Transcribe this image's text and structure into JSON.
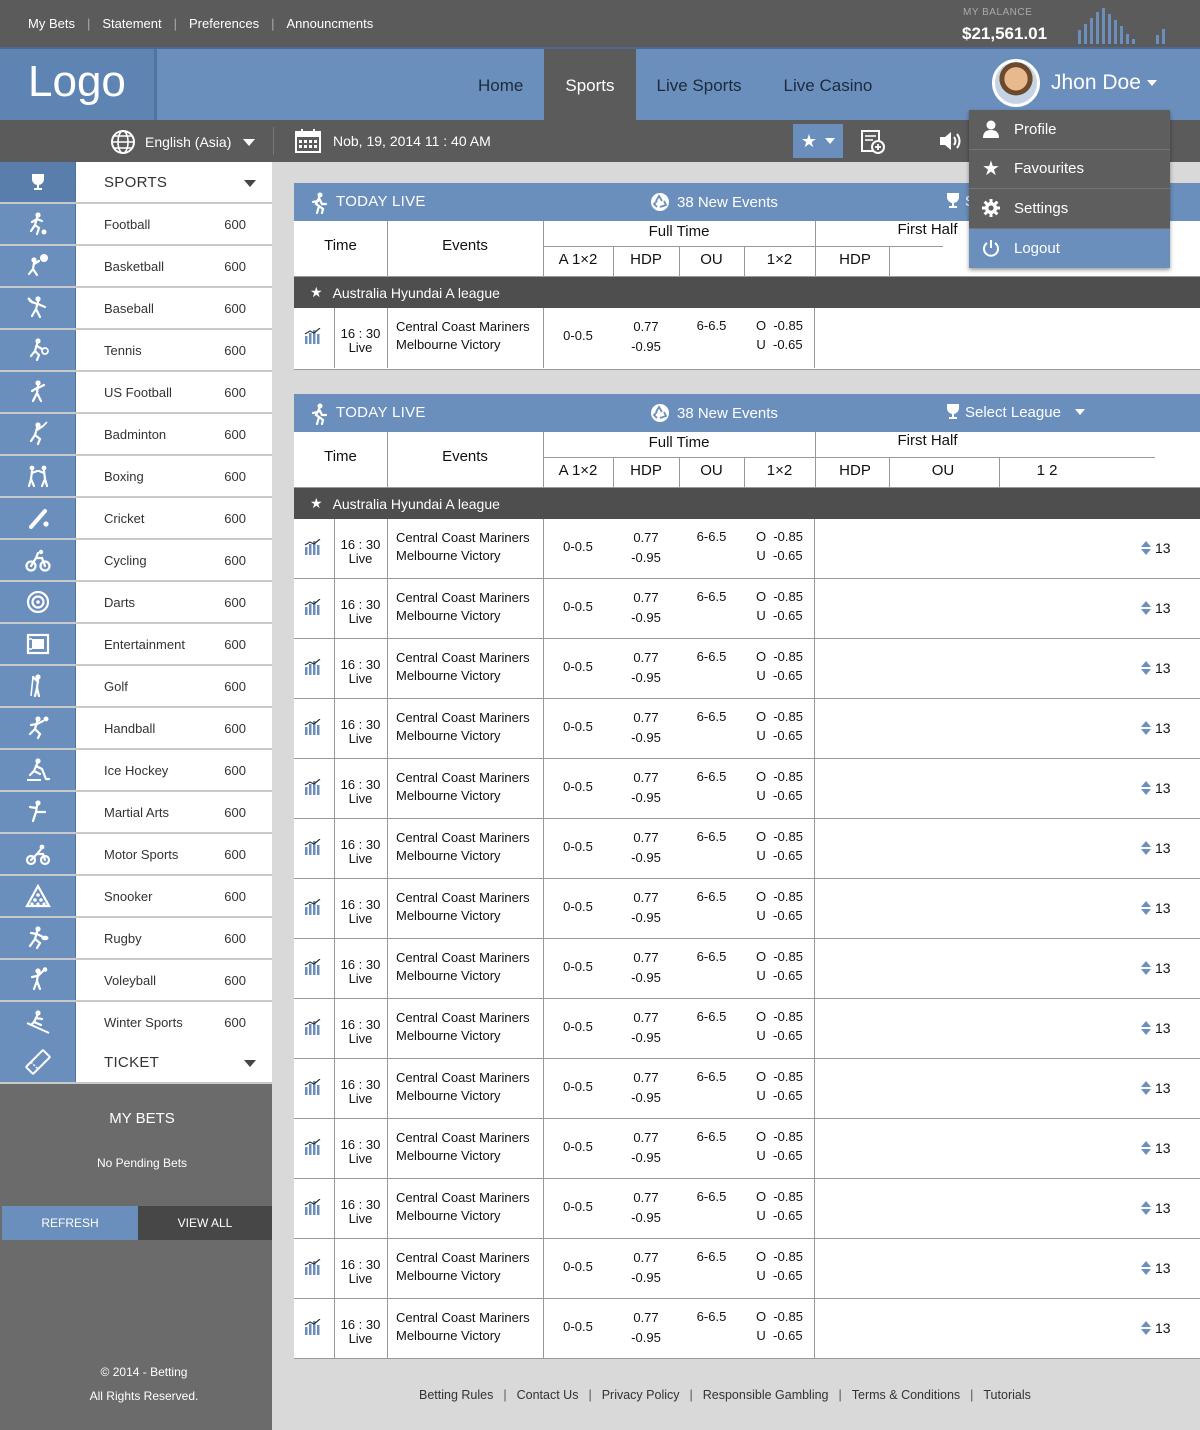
{
  "topbar": {
    "links": [
      "My Bets",
      "Statement",
      "Preferences",
      "Announcments"
    ],
    "balance_label": "MY BALANCE",
    "balance_value": "$21,561.01"
  },
  "header": {
    "logo": "Logo",
    "nav": [
      {
        "label": "Home",
        "active": false
      },
      {
        "label": "Sports",
        "active": true
      },
      {
        "label": "Live Sports",
        "active": false
      },
      {
        "label": "Live Casino",
        "active": false
      }
    ],
    "user_name": "Jhon Doe"
  },
  "toolbar": {
    "language": "English (Asia)",
    "datetime": "Nob, 19, 2014 11 : 40 AM"
  },
  "user_menu": {
    "items": [
      {
        "label": "Profile",
        "icon": "user-icon"
      },
      {
        "label": "Favourites",
        "icon": "star-icon"
      },
      {
        "label": "Settings",
        "icon": "gear-icon"
      },
      {
        "label": "Logout",
        "icon": "power-icon"
      }
    ]
  },
  "sidebar": {
    "sports_title": "SPORTS",
    "sports": [
      {
        "label": "Football",
        "count": "600"
      },
      {
        "label": "Basketball",
        "count": "600"
      },
      {
        "label": "Baseball",
        "count": "600"
      },
      {
        "label": "Tennis",
        "count": "600"
      },
      {
        "label": "US Football",
        "count": "600"
      },
      {
        "label": "Badminton",
        "count": "600"
      },
      {
        "label": "Boxing",
        "count": "600"
      },
      {
        "label": "Cricket",
        "count": "600"
      },
      {
        "label": "Cycling",
        "count": "600"
      },
      {
        "label": "Darts",
        "count": "600"
      },
      {
        "label": "Entertainment",
        "count": "600"
      },
      {
        "label": "Golf",
        "count": "600"
      },
      {
        "label": "Handball",
        "count": "600"
      },
      {
        "label": "Ice Hockey",
        "count": "600"
      },
      {
        "label": "Martial Arts",
        "count": "600"
      },
      {
        "label": "Motor Sports",
        "count": "600"
      },
      {
        "label": "Snooker",
        "count": "600"
      },
      {
        "label": "Rugby",
        "count": "600"
      },
      {
        "label": "Voleyball",
        "count": "600"
      },
      {
        "label": "Winter Sports",
        "count": "600"
      }
    ],
    "ticket_title": "TICKET",
    "mybets_title": "MY BETS",
    "no_pending": "No Pending Bets",
    "refresh": "REFRESH",
    "view_all": "VIEW ALL",
    "copyright": "© 2014 - Betting",
    "rights": "All Rights Reserved."
  },
  "panel1": {
    "title": "TODAY LIVE",
    "new_events": "38 New Events",
    "select_league_partial": "S",
    "cols": {
      "time": "Time",
      "events": "Events",
      "full_time": "Full Time",
      "first_half": "First Half",
      "a12": "A 1×2",
      "hdp": "HDP",
      "ou": "OU",
      "x12": "1×2",
      "hdp2": "HDP"
    },
    "league": "Australia Hyundai A league",
    "match": {
      "time": "16 : 30",
      "status": "Live",
      "home": "Central Coast Mariners",
      "away": "Melbourne Victory",
      "a12": "0-0.5",
      "hdp_top": "0.77",
      "hdp_bot": "-0.95",
      "ou": "6-6.5",
      "x12_top": "O  -0.85",
      "x12_bot": "U  -0.65"
    }
  },
  "panel2": {
    "title": "TODAY LIVE",
    "new_events": "38 New Events",
    "select_league": "Select League",
    "cols": {
      "time": "Time",
      "events": "Events",
      "full_time": "Full Time",
      "first_half": "First Half",
      "a12": "A 1×2",
      "hdp": "HDP",
      "ou": "OU",
      "x12": "1×2",
      "hdp2": "HDP",
      "ou2": "OU",
      "x12_2": "1  2"
    },
    "league": "Australia Hyundai A league",
    "matches": [
      {
        "time": "16 : 30",
        "status": "Live",
        "home": "Central Coast Mariners",
        "away": "Melbourne Victory",
        "a12": "0-0.5",
        "hdp_top": "0.77",
        "hdp_bot": "-0.95",
        "ou": "6-6.5",
        "x12_top": "O  -0.85",
        "x12_bot": "U  -0.65",
        "more": "13"
      },
      {
        "time": "16 : 30",
        "status": "Live",
        "home": "Central Coast Mariners",
        "away": "Melbourne Victory",
        "a12": "0-0.5",
        "hdp_top": "0.77",
        "hdp_bot": "-0.95",
        "ou": "6-6.5",
        "x12_top": "O  -0.85",
        "x12_bot": "U  -0.65",
        "more": "13"
      },
      {
        "time": "16 : 30",
        "status": "Live",
        "home": "Central Coast Mariners",
        "away": "Melbourne Victory",
        "a12": "0-0.5",
        "hdp_top": "0.77",
        "hdp_bot": "-0.95",
        "ou": "6-6.5",
        "x12_top": "O  -0.85",
        "x12_bot": "U  -0.65",
        "more": "13"
      },
      {
        "time": "16 : 30",
        "status": "Live",
        "home": "Central Coast Mariners",
        "away": "Melbourne Victory",
        "a12": "0-0.5",
        "hdp_top": "0.77",
        "hdp_bot": "-0.95",
        "ou": "6-6.5",
        "x12_top": "O  -0.85",
        "x12_bot": "U  -0.65",
        "more": "13"
      },
      {
        "time": "16 : 30",
        "status": "Live",
        "home": "Central Coast Mariners",
        "away": "Melbourne Victory",
        "a12": "0-0.5",
        "hdp_top": "0.77",
        "hdp_bot": "-0.95",
        "ou": "6-6.5",
        "x12_top": "O  -0.85",
        "x12_bot": "U  -0.65",
        "more": "13"
      },
      {
        "time": "16 : 30",
        "status": "Live",
        "home": "Central Coast Mariners",
        "away": "Melbourne Victory",
        "a12": "0-0.5",
        "hdp_top": "0.77",
        "hdp_bot": "-0.95",
        "ou": "6-6.5",
        "x12_top": "O  -0.85",
        "x12_bot": "U  -0.65",
        "more": "13"
      },
      {
        "time": "16 : 30",
        "status": "Live",
        "home": "Central Coast Mariners",
        "away": "Melbourne Victory",
        "a12": "0-0.5",
        "hdp_top": "0.77",
        "hdp_bot": "-0.95",
        "ou": "6-6.5",
        "x12_top": "O  -0.85",
        "x12_bot": "U  -0.65",
        "more": "13"
      },
      {
        "time": "16 : 30",
        "status": "Live",
        "home": "Central Coast Mariners",
        "away": "Melbourne Victory",
        "a12": "0-0.5",
        "hdp_top": "0.77",
        "hdp_bot": "-0.95",
        "ou": "6-6.5",
        "x12_top": "O  -0.85",
        "x12_bot": "U  -0.65",
        "more": "13"
      },
      {
        "time": "16 : 30",
        "status": "Live",
        "home": "Central Coast Mariners",
        "away": "Melbourne Victory",
        "a12": "0-0.5",
        "hdp_top": "0.77",
        "hdp_bot": "-0.95",
        "ou": "6-6.5",
        "x12_top": "O  -0.85",
        "x12_bot": "U  -0.65",
        "more": "13"
      },
      {
        "time": "16 : 30",
        "status": "Live",
        "home": "Central Coast Mariners",
        "away": "Melbourne Victory",
        "a12": "0-0.5",
        "hdp_top": "0.77",
        "hdp_bot": "-0.95",
        "ou": "6-6.5",
        "x12_top": "O  -0.85",
        "x12_bot": "U  -0.65",
        "more": "13"
      },
      {
        "time": "16 : 30",
        "status": "Live",
        "home": "Central Coast Mariners",
        "away": "Melbourne Victory",
        "a12": "0-0.5",
        "hdp_top": "0.77",
        "hdp_bot": "-0.95",
        "ou": "6-6.5",
        "x12_top": "O  -0.85",
        "x12_bot": "U  -0.65",
        "more": "13"
      },
      {
        "time": "16 : 30",
        "status": "Live",
        "home": "Central Coast Mariners",
        "away": "Melbourne Victory",
        "a12": "0-0.5",
        "hdp_top": "0.77",
        "hdp_bot": "-0.95",
        "ou": "6-6.5",
        "x12_top": "O  -0.85",
        "x12_bot": "U  -0.65",
        "more": "13"
      },
      {
        "time": "16 : 30",
        "status": "Live",
        "home": "Central Coast Mariners",
        "away": "Melbourne Victory",
        "a12": "0-0.5",
        "hdp_top": "0.77",
        "hdp_bot": "-0.95",
        "ou": "6-6.5",
        "x12_top": "O  -0.85",
        "x12_bot": "U  -0.65",
        "more": "13"
      },
      {
        "time": "16 : 30",
        "status": "Live",
        "home": "Central Coast Mariners",
        "away": "Melbourne Victory",
        "a12": "0-0.5",
        "hdp_top": "0.77",
        "hdp_bot": "-0.95",
        "ou": "6-6.5",
        "x12_top": "O  -0.85",
        "x12_bot": "U  -0.65",
        "more": "13"
      }
    ]
  },
  "footer": {
    "links": [
      "Betting Rules",
      "Contact Us",
      "Privacy Policy",
      "Responsible Gambling",
      "Terms & Conditions",
      "Tutorials"
    ]
  },
  "colors": {
    "accent": "#6b8fbd",
    "dark": "#5b5b5b",
    "league_bar": "#4e4e4e"
  }
}
